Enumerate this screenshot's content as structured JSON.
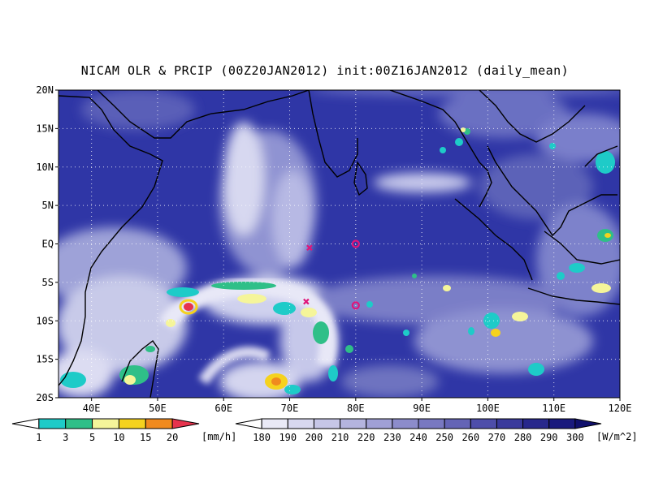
{
  "title": "NICAM OLR & PRCIP (00Z20JAN2012) init:00Z16JAN2012 (daily_mean)",
  "map": {
    "lat_labels": [
      "20N",
      "15N",
      "10N",
      "5N",
      "EQ",
      "5S",
      "10S",
      "15S",
      "20S"
    ],
    "lon_labels": [
      "40E",
      "50E",
      "60E",
      "70E",
      "80E",
      "90E",
      "100E",
      "110E",
      "120E"
    ],
    "lon_range": [
      35,
      120
    ],
    "lat_range": [
      -20,
      20
    ],
    "grid": "dotted"
  },
  "markers": [
    {
      "type": "cross",
      "lon": 73,
      "lat": -0.5,
      "color": "#e0157a"
    },
    {
      "type": "cross",
      "lon": 72.5,
      "lat": -7.5,
      "color": "#e0157a"
    },
    {
      "type": "circle",
      "lon": 80,
      "lat": 0,
      "color": "#e0157a"
    },
    {
      "type": "circle",
      "lon": 80,
      "lat": -8,
      "color": "#e0157a"
    }
  ],
  "precip_legend": {
    "labels": [
      "1",
      "3",
      "5",
      "10",
      "15",
      "20"
    ],
    "unit": "[mm/h]",
    "colors": [
      "#ffffff",
      "#1ecbc8",
      "#2fbf88",
      "#f5f59a",
      "#f5d21e",
      "#f08a1e",
      "#e6334d"
    ]
  },
  "olr_legend": {
    "labels": [
      "180",
      "190",
      "200",
      "210",
      "220",
      "230",
      "240",
      "250",
      "260",
      "270",
      "280",
      "290",
      "300"
    ],
    "unit": "[W/m^2]",
    "colors": [
      "#ffffff",
      "#e9e9f6",
      "#d8d8ef",
      "#c6c6e7",
      "#b4b4de",
      "#a0a0d5",
      "#8c8ccb",
      "#7878c1",
      "#6464b6",
      "#4e4eaa",
      "#3a3a9c",
      "#28288c",
      "#1a1a7d",
      "#10106c"
    ]
  }
}
